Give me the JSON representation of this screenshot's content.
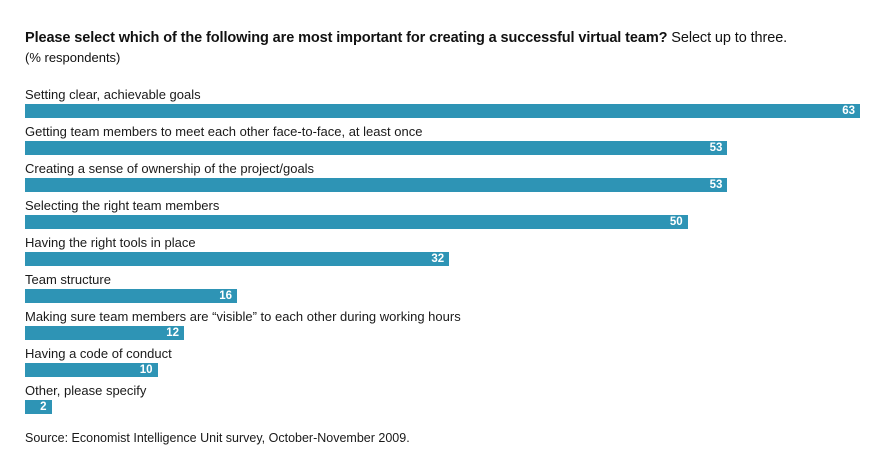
{
  "header": {
    "title_bold": "Please select which of the following are most important for creating a successful virtual team?",
    "title_rest": " Select up to three.",
    "subtitle": "(% respondents)"
  },
  "chart_data": {
    "type": "bar",
    "orientation": "horizontal",
    "categories": [
      "Setting clear, achievable goals",
      "Getting team members to meet each other face-to-face, at least once",
      "Creating a sense of ownership of the project/goals",
      "Selecting the right team members",
      "Having the right tools in place",
      "Team structure",
      "Making sure team members are “visible” to each other during working hours",
      "Having a code of conduct",
      "Other, please specify"
    ],
    "values": [
      63,
      53,
      53,
      50,
      32,
      16,
      12,
      10,
      2
    ],
    "xlim": [
      0,
      63
    ],
    "bar_color": "#2e94b5",
    "value_label_color": "#ffffff",
    "grid": false,
    "legend": false,
    "value_labels_position": "inside-end"
  },
  "footer": {
    "source": "Source: Economist Intelligence Unit survey, October-November 2009."
  }
}
